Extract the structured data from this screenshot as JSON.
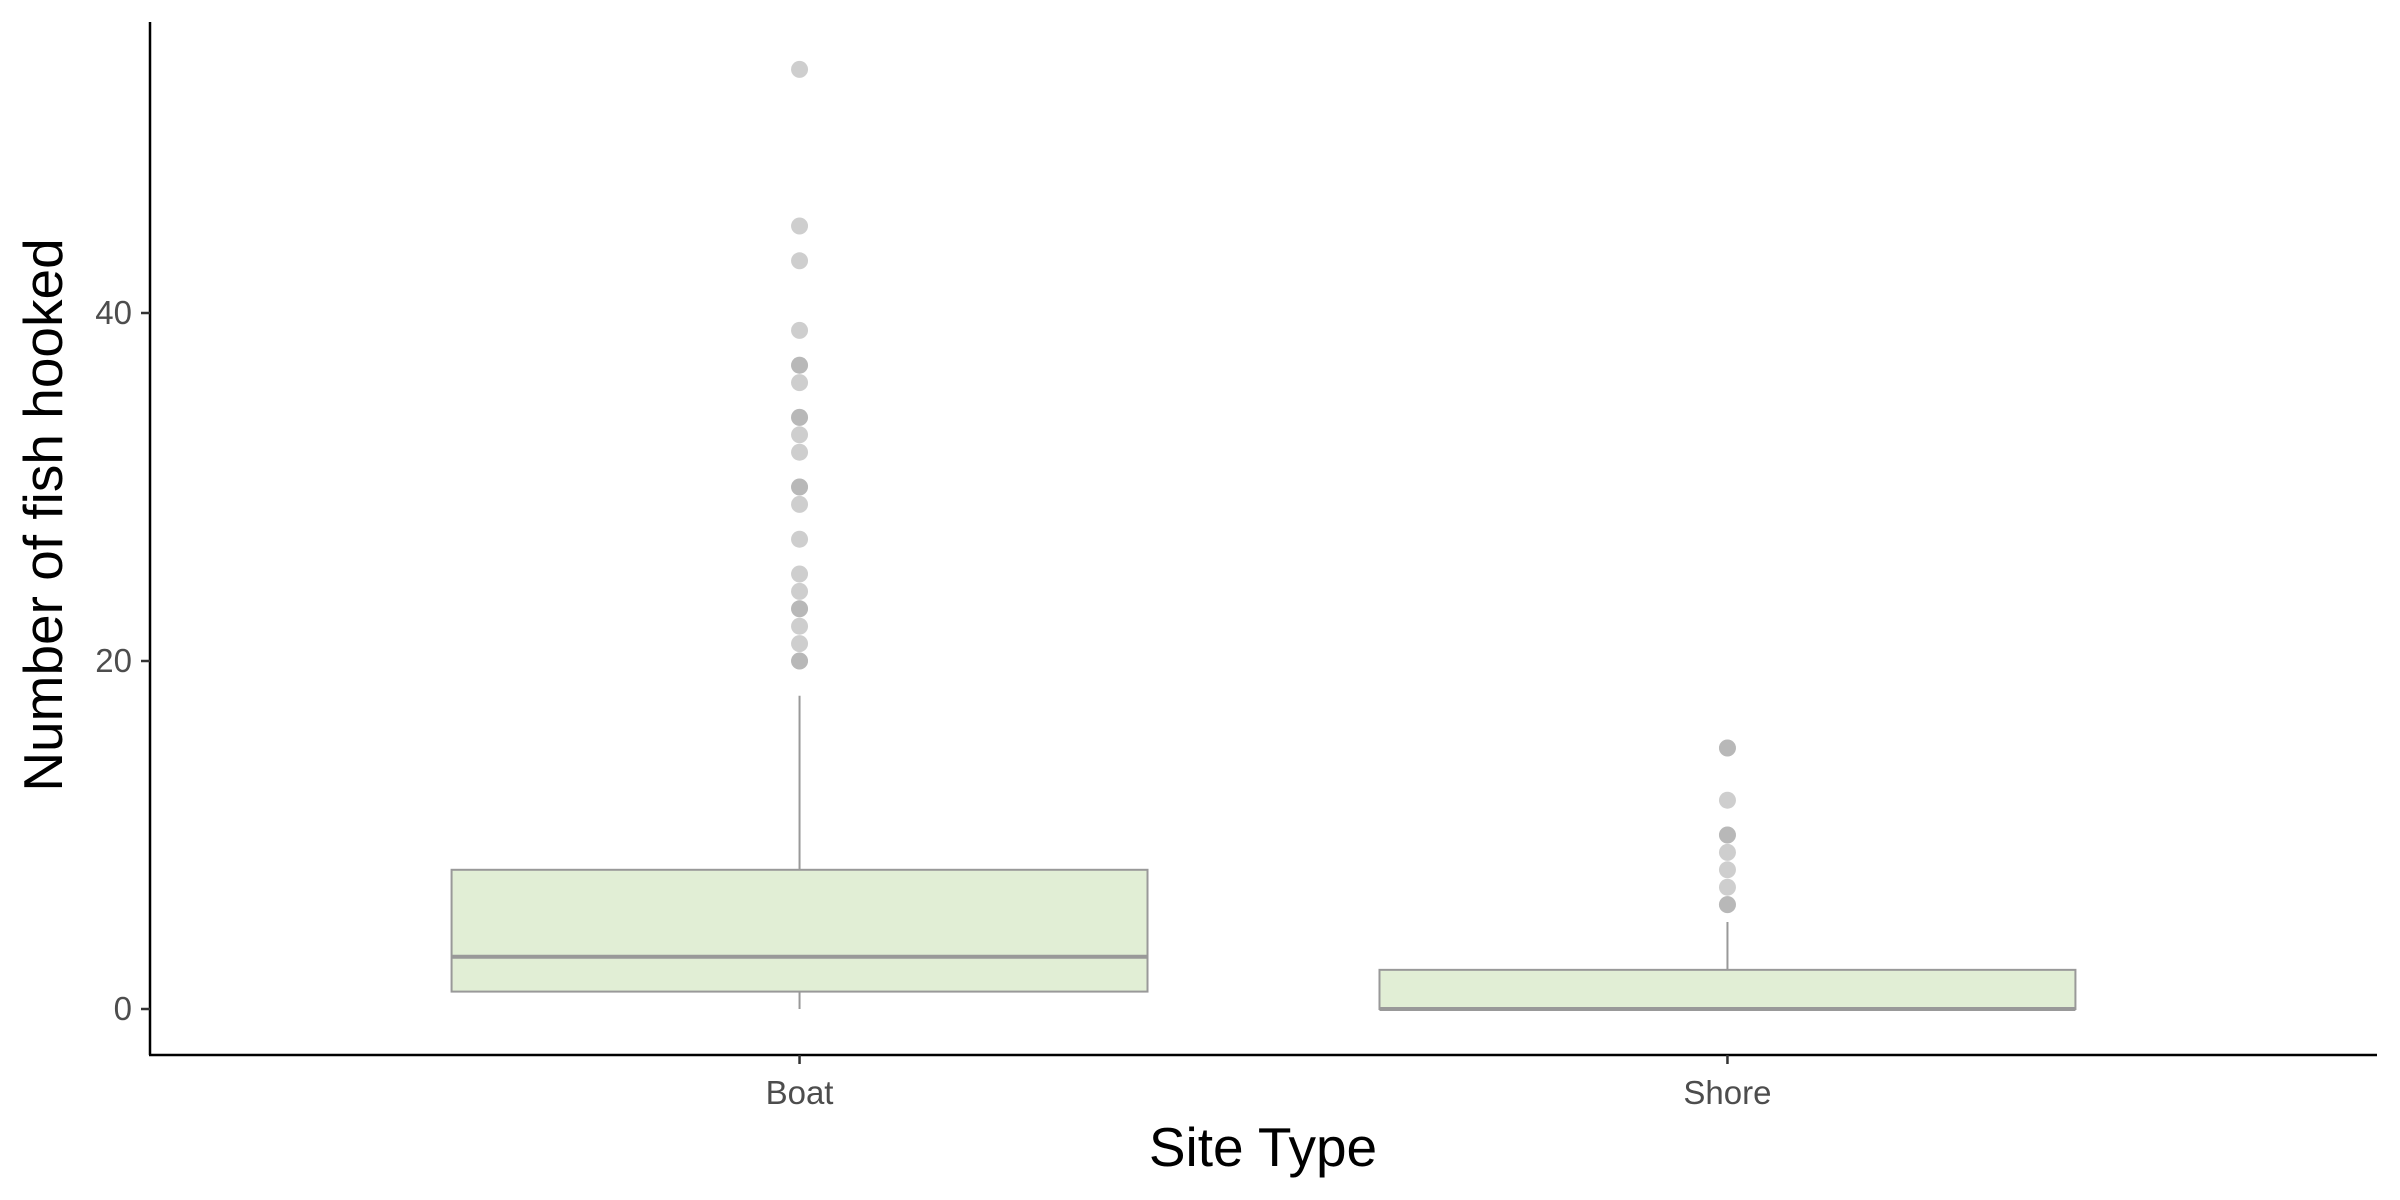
{
  "chart_data": {
    "type": "boxplot",
    "title": "",
    "xlabel": "Site Type",
    "ylabel": "Number of fish hooked",
    "categories": [
      "Boat",
      "Shore"
    ],
    "ylim": [
      -2.6,
      56.6
    ],
    "yticks": [
      0,
      20,
      40
    ],
    "grid": false,
    "legend": "none",
    "colors": {
      "box_fill": "#e1eed5",
      "box_stroke": "#999999",
      "outlier": "#a6a6a6",
      "axis": "#000000"
    },
    "boxes": [
      {
        "category": "Boat",
        "whisker_low": 0,
        "q1": 1,
        "median": 3,
        "q3": 8,
        "whisker_high": 18,
        "outliers": [
          20,
          20,
          21,
          22,
          23,
          23,
          24,
          25,
          27,
          29,
          30,
          30,
          32,
          33,
          34,
          34,
          36,
          37,
          37,
          39,
          43,
          45,
          54
        ]
      },
      {
        "category": "Shore",
        "whisker_low": 0,
        "q1": 0,
        "median": 0,
        "q3": 2.25,
        "whisker_high": 5,
        "outliers": [
          6,
          6,
          7,
          8,
          9,
          10,
          10,
          12,
          15,
          15
        ]
      }
    ]
  }
}
